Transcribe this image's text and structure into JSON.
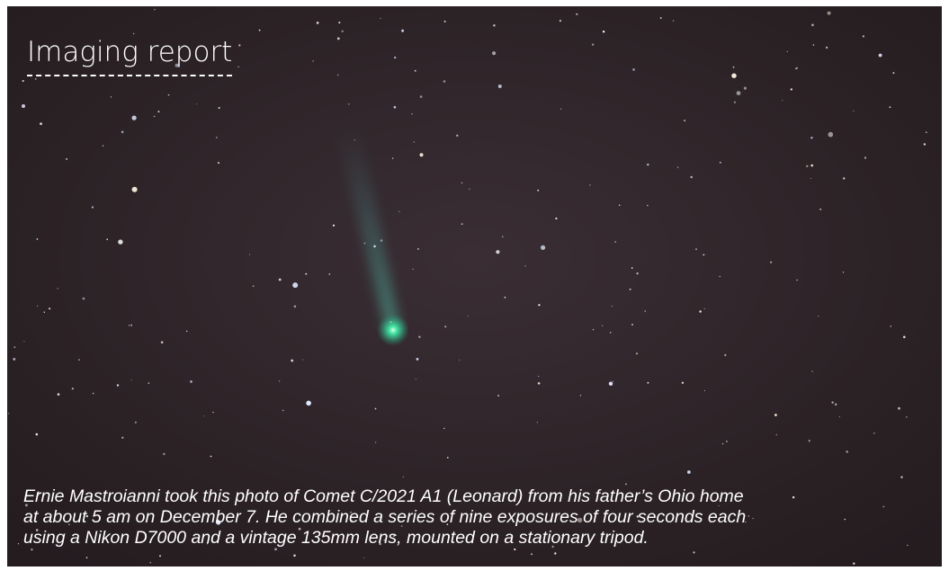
{
  "header": {
    "title": "Imaging report"
  },
  "caption": {
    "lines": [
      "Ernie Mastroianni took this photo of Comet C/2021 A1 (Leonard) from his father’s Ohio home",
      "at about 5 am on December 7. He combined a series of nine exposures of four seconds each",
      "using a Nikon D7000 and a vintage 135mm lens, mounted on a stationary tripod."
    ]
  }
}
